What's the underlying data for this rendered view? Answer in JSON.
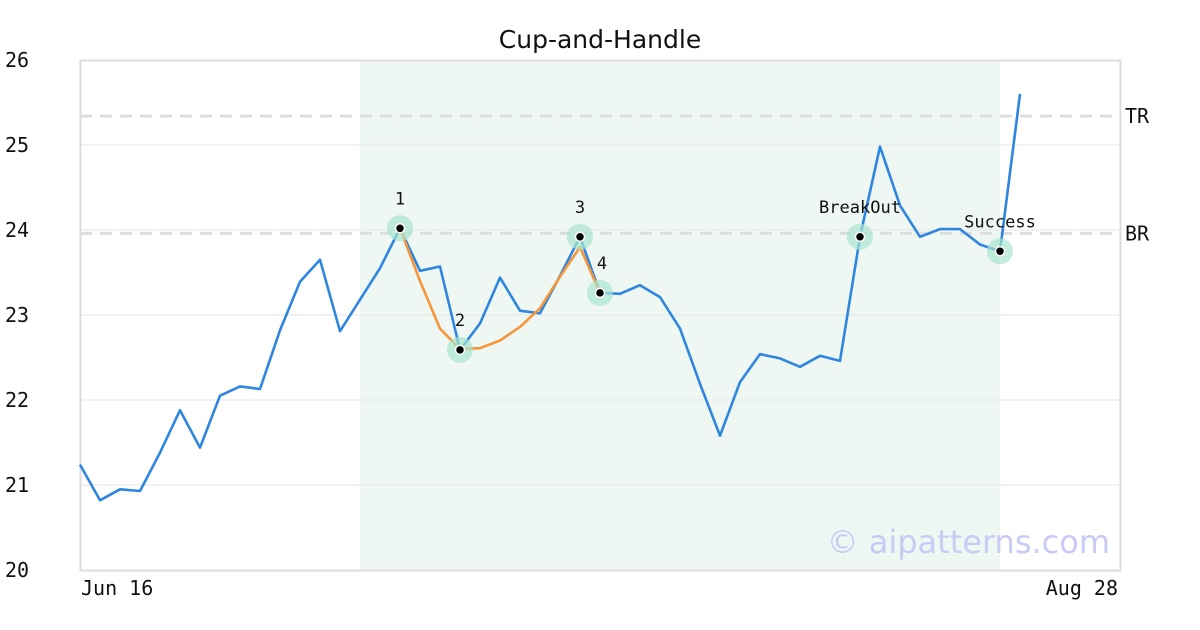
{
  "chart_data": {
    "type": "line",
    "title": "Cup-and-Handle",
    "ylim": [
      20,
      26
    ],
    "y_ticks": [
      "20",
      "21",
      "22",
      "23",
      "24",
      "25",
      "26"
    ],
    "x_tick_labels": [
      "Jun 16",
      "Aug 28"
    ],
    "grid": "horizontal",
    "series": [
      {
        "color": "#2f86e0",
        "values": [
          21.24,
          20.82,
          20.95,
          20.93,
          21.38,
          21.88,
          21.44,
          22.05,
          22.16,
          22.13,
          22.82,
          23.39,
          23.65,
          22.81,
          23.18,
          23.55,
          24.02,
          23.52,
          23.57,
          22.59,
          22.9,
          23.44,
          23.05,
          23.02,
          23.46,
          23.92,
          23.26,
          23.25,
          23.35,
          23.21,
          22.84,
          22.19,
          21.58,
          22.21,
          22.54,
          22.49,
          22.39,
          22.52,
          22.46,
          23.92,
          24.98,
          24.29,
          23.92,
          24.01,
          24.01,
          23.83,
          23.75,
          25.6
        ]
      },
      {
        "color": "#f5963a",
        "start_index": 16,
        "values": [
          24.02,
          23.4,
          22.84,
          22.6,
          22.61,
          22.7,
          22.86,
          23.08,
          23.45,
          23.8,
          23.26
        ]
      }
    ],
    "reference_lines": [
      {
        "label": "TR",
        "y": 25.34
      },
      {
        "label": "BR",
        "y": 23.96
      }
    ],
    "highlight_region": {
      "start_index": 14,
      "end_index": 46,
      "color": "#eef7f2"
    },
    "annotations": [
      {
        "label": "1",
        "index": 16,
        "y": 24.02
      },
      {
        "label": "2",
        "index": 19,
        "y": 22.59
      },
      {
        "label": "3",
        "index": 25,
        "y": 23.92
      },
      {
        "label": "4",
        "index": 26,
        "y": 23.26
      },
      {
        "label": "BreakOut",
        "index": 39,
        "y": 23.92
      },
      {
        "label": "Success",
        "index": 46,
        "y": 23.75
      }
    ],
    "watermark": "© aipatterns.com"
  }
}
